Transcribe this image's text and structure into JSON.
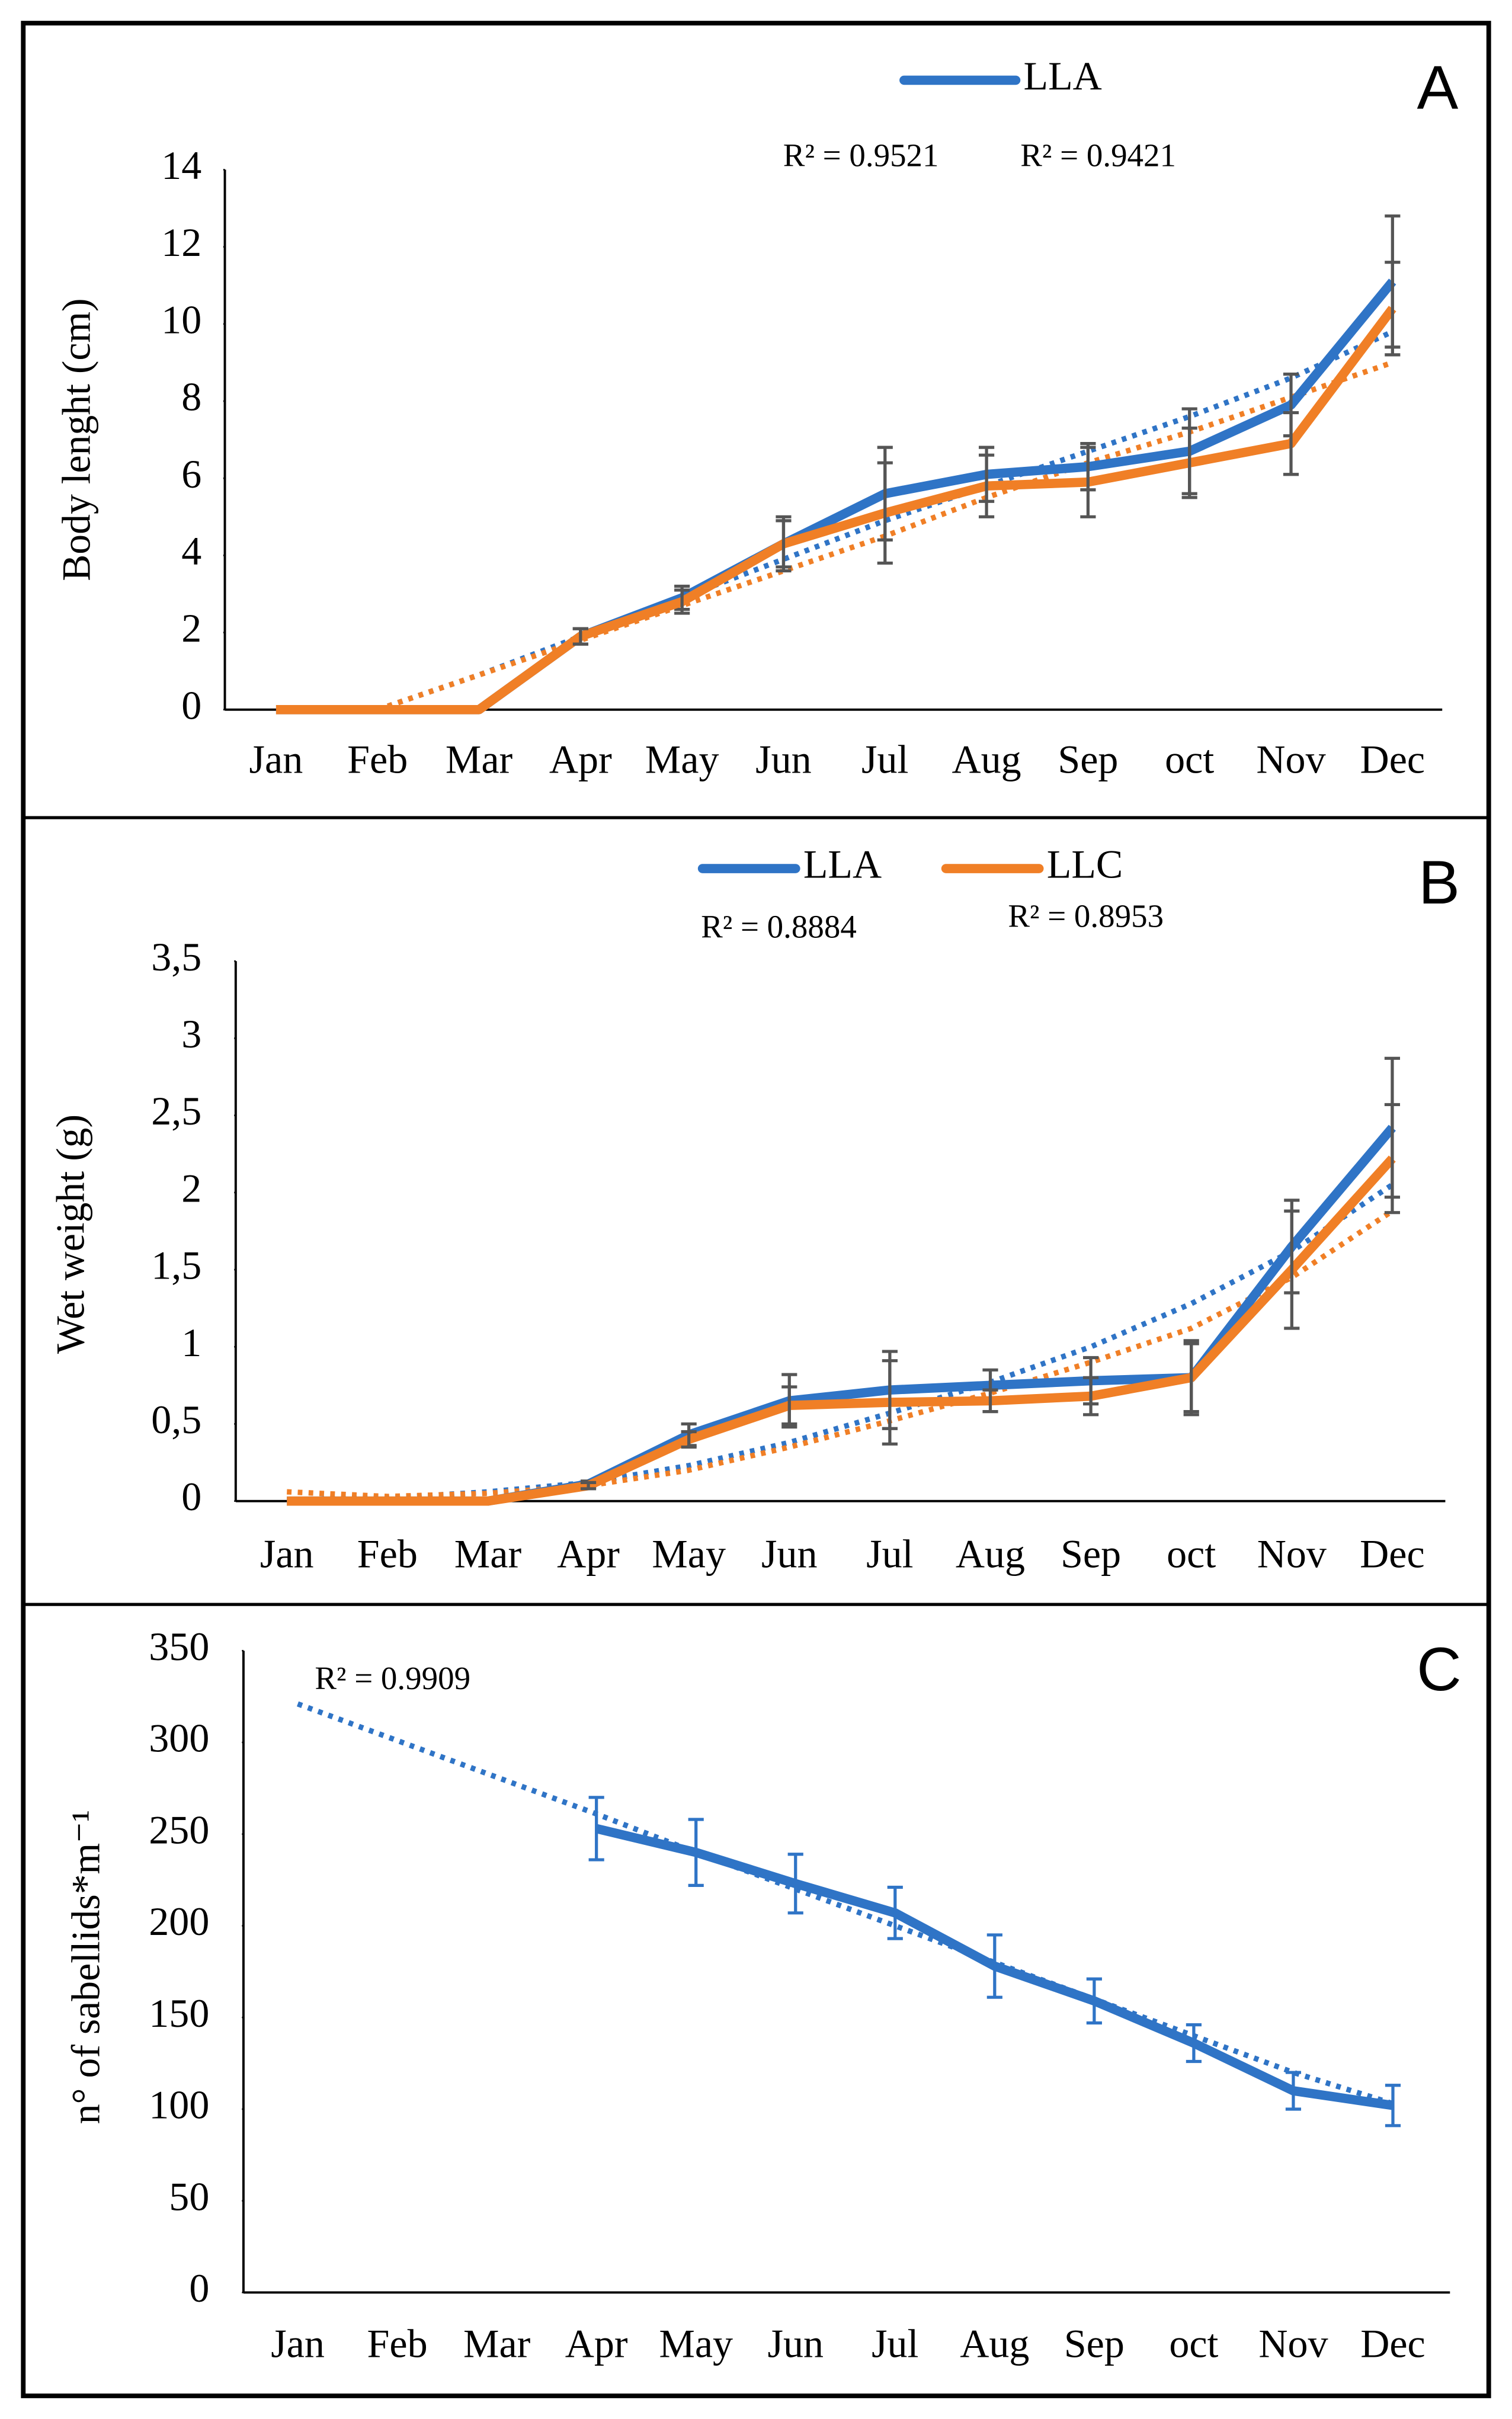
{
  "chart_data": [
    {
      "type": "line",
      "panel": "A",
      "y_label": "Body lenght (cm)",
      "categories": [
        "Jan",
        "Feb",
        "Mar",
        "Apr",
        "May",
        "Jun",
        "Jul",
        "Aug",
        "Sep",
        "oct",
        "Nov",
        "Dec"
      ],
      "ylim": [
        0,
        14
      ],
      "yticks": [
        0,
        2,
        4,
        6,
        8,
        10,
        12,
        14
      ],
      "annotations": [
        "R² = 0.9521",
        "R² = 0.9421"
      ],
      "series": [
        {
          "name": "LLA",
          "color": "#2f74c6",
          "values": [
            0,
            0,
            0,
            1.9,
            2.9,
            4.3,
            5.6,
            6.1,
            6.3,
            6.7,
            7.9,
            11.1
          ],
          "errors": [
            0,
            0,
            0,
            0.2,
            0.3,
            0.7,
            1.2,
            0.7,
            0.6,
            1.1,
            0.8,
            1.7
          ],
          "trend": [
            null,
            0,
            0.9,
            1.9,
            2.9,
            3.9,
            4.9,
            5.8,
            6.7,
            7.6,
            8.6,
            9.8
          ]
        },
        {
          "color": "#f07f26",
          "values": [
            0,
            0,
            0,
            1.9,
            2.8,
            4.3,
            5.1,
            5.8,
            5.9,
            6.4,
            6.9,
            10.4
          ],
          "errors": [
            0,
            0,
            0,
            0.2,
            0.3,
            0.6,
            1.3,
            0.8,
            0.9,
            0.9,
            0.8,
            1.2
          ],
          "trend": [
            null,
            0,
            0.9,
            1.8,
            2.7,
            3.6,
            4.5,
            5.5,
            6.4,
            7.2,
            8.1,
            9.0
          ]
        }
      ]
    },
    {
      "type": "line",
      "panel": "B",
      "y_label": "Wet weight (g)",
      "categories": [
        "Jan",
        "Feb",
        "Mar",
        "Apr",
        "May",
        "Jun",
        "Jul",
        "Aug",
        "Sep",
        "oct",
        "Nov",
        "Dec"
      ],
      "ylim": [
        0,
        3.5
      ],
      "yticks": [
        0,
        {
          "value": 0.5,
          "label": "0,5"
        },
        1,
        {
          "value": 1.5,
          "label": "1,5"
        },
        2,
        {
          "value": 2.5,
          "label": "2,5"
        },
        3,
        {
          "value": 3.5,
          "label": "3,5"
        }
      ],
      "annotations": [
        "R² = 0.8884",
        "R² = 0.8953"
      ],
      "series": [
        {
          "name": "LLA",
          "color": "#2f74c6",
          "values": [
            0,
            0,
            0,
            0.11,
            0.43,
            0.65,
            0.72,
            0.75,
            0.78,
            0.8,
            1.65,
            2.42
          ],
          "errors": [
            0,
            0,
            0,
            0.02,
            0.07,
            0.17,
            0.25,
            0.1,
            0.15,
            0.24,
            0.3,
            0.45
          ],
          "trend": [
            0.01,
            0.02,
            0.06,
            0.12,
            0.23,
            0.38,
            0.57,
            0.77,
            1.0,
            1.28,
            1.62,
            2.05
          ]
        },
        {
          "name": "LLC",
          "color": "#f07f26",
          "values": [
            0,
            0,
            0,
            0.1,
            0.4,
            0.62,
            0.64,
            0.65,
            0.68,
            0.8,
            1.5,
            2.22
          ],
          "errors": [
            0,
            0,
            0,
            0.02,
            0.05,
            0.12,
            0.27,
            0.07,
            0.12,
            0.22,
            0.38,
            0.35
          ],
          "trend": [
            0.06,
            0.03,
            0.05,
            0.1,
            0.2,
            0.35,
            0.52,
            0.7,
            0.9,
            1.12,
            1.45,
            1.88
          ]
        }
      ]
    },
    {
      "type": "line",
      "panel": "C",
      "y_label": "n° of sabellids*m⁻¹",
      "categories": [
        "Jan",
        "Feb",
        "Mar",
        "Apr",
        "May",
        "Jun",
        "Jul",
        "Aug",
        "Sep",
        "oct",
        "Nov",
        "Dec"
      ],
      "ylim": [
        0,
        350
      ],
      "yticks": [
        0,
        50,
        100,
        150,
        200,
        250,
        300,
        350
      ],
      "annotations": [
        "R² = 0.9909"
      ],
      "series": [
        {
          "color": "#2f74c6",
          "values": [
            null,
            null,
            null,
            253,
            240,
            223,
            207,
            178,
            159,
            136,
            110,
            102
          ],
          "errors": [
            null,
            null,
            null,
            17,
            18,
            16,
            14,
            17,
            12,
            10,
            10,
            11
          ],
          "trend": [
            321,
            301,
            281,
            261,
            240,
            220,
            200,
            180,
            160,
            140,
            120,
            103
          ]
        }
      ]
    }
  ]
}
